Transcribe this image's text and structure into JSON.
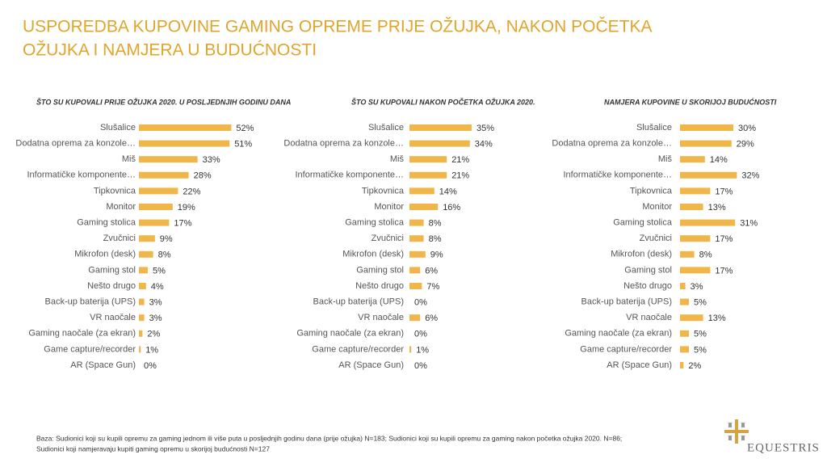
{
  "title": [
    "USPOREDBA KUPOVINE GAMING OPREME PRIJE OŽUJKA, NAKON POČETKA",
    "OŽUJKA I NAMJERA U BUDUĆNOSTI"
  ],
  "chart_data": [
    {
      "type": "bar",
      "orientation": "horizontal",
      "title": "ŠTO SU KUPOVALI PRIJE OŽUJKA 2020. U POSLJEDNJIH GODINU DANA",
      "color": "#f0b64a",
      "categories": [
        "Slušalice",
        "Dodatna oprema za konzole…",
        "Miš",
        "Informatičke komponente…",
        "Tipkovnica",
        "Monitor",
        "Gaming stolica",
        "Zvučnici",
        "Mikrofon (desk)",
        "Gaming stol",
        "Nešto drugo",
        "Back-up baterija (UPS)",
        "VR naočale",
        "Gaming naočale (za ekran)",
        "Game capture/recorder",
        "AR (Space Gun)"
      ],
      "values": [
        52,
        51,
        33,
        28,
        22,
        19,
        17,
        9,
        8,
        5,
        4,
        3,
        3,
        2,
        1,
        0
      ],
      "value_labels": [
        "52%",
        "51%",
        "33%",
        "28%",
        "22%",
        "19%",
        "17%",
        "9%",
        "8%",
        "5%",
        "4%",
        "3%",
        "3%",
        "2%",
        "1%",
        "0%"
      ]
    },
    {
      "type": "bar",
      "orientation": "horizontal",
      "title": "ŠTO SU KUPOVALI NAKON POČETKA OŽUJKA 2020.",
      "color": "#f0b64a",
      "categories": [
        "Slušalice",
        "Dodatna oprema za konzole…",
        "Miš",
        "Informatičke komponente…",
        "Tipkovnica",
        "Monitor",
        "Gaming stolica",
        "Zvučnici",
        "Mikrofon (desk)",
        "Gaming stol",
        "Nešto drugo",
        "Back-up baterija (UPS)",
        "VR naočale",
        "Gaming naočale (za ekran)",
        "Game capture/recorder",
        "AR (Space Gun)"
      ],
      "values": [
        35,
        34,
        21,
        21,
        14,
        16,
        8,
        8,
        9,
        6,
        7,
        0,
        6,
        0,
        1,
        0
      ],
      "value_labels": [
        "35%",
        "34%",
        "21%",
        "21%",
        "14%",
        "16%",
        "8%",
        "8%",
        "9%",
        "6%",
        "7%",
        "0%",
        "6%",
        "0%",
        "1%",
        "0%"
      ]
    },
    {
      "type": "bar",
      "orientation": "horizontal",
      "title": "NAMJERA KUPOVINE U SKORIJOJ BUDUĆNOSTI",
      "color": "#f0b64a",
      "categories": [
        "Slušalice",
        "Dodatna oprema za konzole…",
        "Miš",
        "Informatičke komponente…",
        "Tipkovnica",
        "Monitor",
        "Gaming stolica",
        "Zvučnici",
        "Mikrofon (desk)",
        "Gaming stol",
        "Nešto drugo",
        "Back-up baterija (UPS)",
        "VR naočale",
        "Gaming naočale (za ekran)",
        "Game capture/recorder",
        "AR (Space Gun)"
      ],
      "values": [
        30,
        29,
        14,
        32,
        17,
        13,
        31,
        17,
        8,
        17,
        3,
        5,
        13,
        5,
        5,
        2
      ],
      "value_labels": [
        "30%",
        "29%",
        "14%",
        "32%",
        "17%",
        "13%",
        "31%",
        "17%",
        "8%",
        "17%",
        "3%",
        "5%",
        "13%",
        "5%",
        "5%",
        "2%"
      ]
    }
  ],
  "footnote": [
    "Baza: Sudionici koji su kupili opremu za gaming jednom ili više puta u posljednjih godinu dana (prije ožujka) N=183; Sudionici koji su kupili opremu za gaming nakon početka ožujka 2020. N=86;",
    "Sudionici koji namjeravaju kupiti gaming opremu u skorijoj budućnosti N=127"
  ],
  "logo": "EQUESTRIS"
}
